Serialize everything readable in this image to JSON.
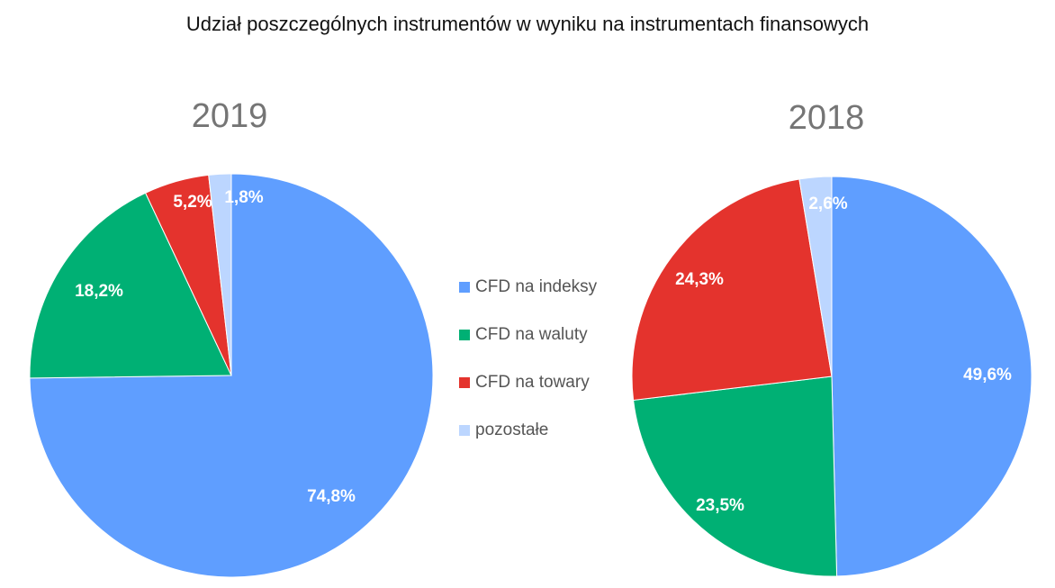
{
  "title": "Udział poszczególnych instrumentów w wyniku na instrumentach finansowych",
  "legend": [
    {
      "label": "CFD na indeksy",
      "color": "#5f9eff"
    },
    {
      "label": "CFD na waluty",
      "color": "#00b074"
    },
    {
      "label": "CFD na towary",
      "color": "#e4332d"
    },
    {
      "label": "pozostałe",
      "color": "#bcd6ff"
    }
  ],
  "chart_data": [
    {
      "type": "pie",
      "title": "2019",
      "categories": [
        "CFD na indeksy",
        "CFD na waluty",
        "CFD na towary",
        "pozostałe"
      ],
      "values": [
        74.8,
        18.2,
        5.2,
        1.8
      ],
      "labels": [
        "74,8%",
        "18,2%",
        "5,2%",
        "1,8%"
      ],
      "colors": [
        "#5f9eff",
        "#00b074",
        "#e4332d",
        "#bcd6ff"
      ]
    },
    {
      "type": "pie",
      "title": "2018",
      "categories": [
        "CFD na indeksy",
        "CFD na waluty",
        "CFD na towary",
        "pozostałe"
      ],
      "values": [
        49.6,
        23.5,
        24.3,
        2.6
      ],
      "labels": [
        "49,6%",
        "23,5%",
        "24,3%",
        "2,6%"
      ],
      "colors": [
        "#5f9eff",
        "#00b074",
        "#e4332d",
        "#bcd6ff"
      ]
    }
  ]
}
